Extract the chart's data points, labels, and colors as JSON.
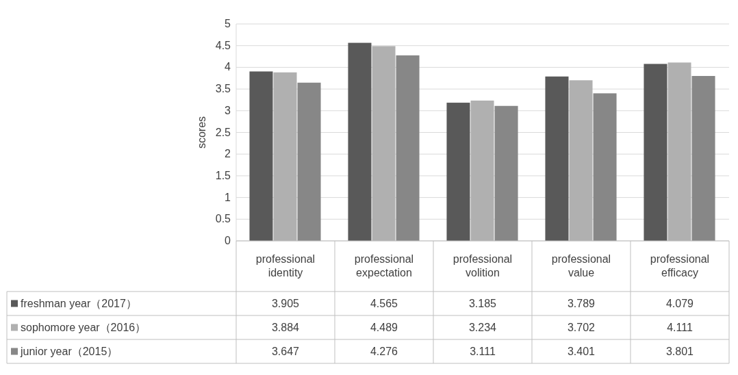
{
  "chart_data": {
    "type": "bar",
    "ylabel": "scores",
    "categories": [
      "professional\nidentity",
      "professional\nexpectation",
      "professional\nvolition",
      "professional\nvalue",
      "professional\nefficacy"
    ],
    "series": [
      {
        "name": "freshman year（2017）",
        "color": "#595959",
        "values": [
          3.905,
          4.565,
          3.185,
          3.789,
          4.079
        ]
      },
      {
        "name": "sophomore year（2016）",
        "color": "#b0b0b0",
        "values": [
          3.884,
          4.489,
          3.234,
          3.702,
          4.111
        ]
      },
      {
        "name": "junior year（2015）",
        "color": "#878787",
        "values": [
          3.647,
          4.276,
          3.111,
          3.401,
          3.801
        ]
      }
    ],
    "ylim": [
      0,
      5
    ],
    "yticks": [
      0,
      0.5,
      1,
      1.5,
      2,
      2.5,
      3,
      3.5,
      4,
      4.5,
      5
    ],
    "grid": "y",
    "data_labels": true,
    "legend": "bottom"
  }
}
